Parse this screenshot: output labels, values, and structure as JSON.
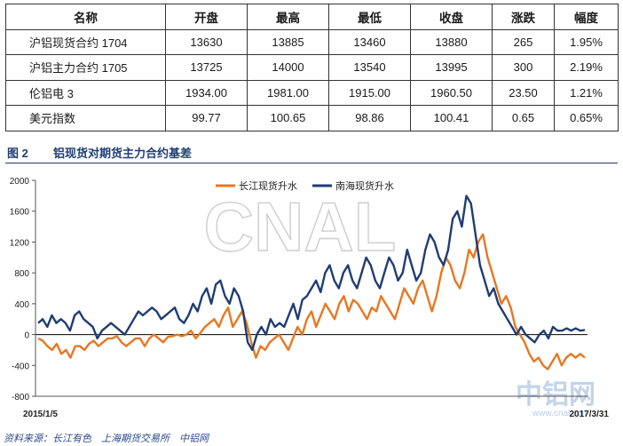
{
  "table": {
    "headers": [
      "名称",
      "开盘",
      "最高",
      "最低",
      "收盘",
      "涨跌",
      "幅度"
    ],
    "rows": [
      [
        "沪铝现货合约 1704",
        "13630",
        "13885",
        "13460",
        "13880",
        "265",
        "1.95%"
      ],
      [
        "沪铝主力合约 1705",
        "13725",
        "14000",
        "13540",
        "13995",
        "300",
        "2.19%"
      ],
      [
        "伦铝电 3",
        "1934.00",
        "1981.00",
        "1915.00",
        "1960.50",
        "23.50",
        "1.21%"
      ],
      [
        "美元指数",
        "99.77",
        "100.65",
        "98.86",
        "100.41",
        "0.65",
        "0.65%"
      ]
    ]
  },
  "figure": {
    "number": "图 2",
    "title": "铝现货对期货主力合约基差"
  },
  "source": "资料来源：长江有色　上海期货交易所　中铝网",
  "watermark": {
    "main": "CNAL",
    "logo": "中铝网",
    "url": "www.cnal.com"
  },
  "chart_data": {
    "type": "line",
    "x_range": [
      "2015/1/5",
      "2017/3/31"
    ],
    "xtick_labels": [
      "2015/1/5",
      "2017/3/31"
    ],
    "ylim": [
      -800,
      2000
    ],
    "yticks": [
      -800,
      -400,
      0,
      400,
      800,
      1200,
      1600,
      2000
    ],
    "legend_position": "top-center",
    "colors": {
      "orange": "#e87722",
      "navy": "#1f3d73"
    },
    "series": [
      {
        "name": "长江现货升水",
        "color": "#e87722",
        "values": [
          -50,
          -80,
          -150,
          -200,
          -120,
          -250,
          -200,
          -300,
          -150,
          -150,
          -200,
          -120,
          -80,
          -150,
          -100,
          -50,
          -50,
          -20,
          -100,
          -150,
          -100,
          -50,
          -50,
          -150,
          -50,
          0,
          -50,
          -100,
          -30,
          -20,
          0,
          -20,
          0,
          50,
          -50,
          20,
          100,
          150,
          200,
          100,
          250,
          350,
          100,
          200,
          300,
          150,
          -100,
          -300,
          -150,
          -200,
          -100,
          -50,
          0,
          -100,
          -200,
          -50,
          100,
          0,
          200,
          300,
          100,
          250,
          400,
          300,
          200,
          400,
          500,
          300,
          450,
          400,
          300,
          200,
          350,
          300,
          500,
          400,
          300,
          200,
          400,
          600,
          500,
          400,
          600,
          700,
          500,
          300,
          500,
          800,
          1000,
          900,
          700,
          600,
          800,
          1100,
          1000,
          1200,
          1300,
          1000,
          800,
          600,
          400,
          500,
          350,
          100,
          0,
          -100,
          -250,
          -350,
          -300,
          -400,
          -450,
          -350,
          -250,
          -400,
          -300,
          -250,
          -300,
          -250,
          -300
        ]
      },
      {
        "name": "南海现货升水",
        "color": "#1f3d73",
        "values": [
          150,
          200,
          100,
          250,
          150,
          200,
          150,
          50,
          250,
          300,
          200,
          150,
          100,
          -50,
          50,
          100,
          150,
          100,
          50,
          0,
          100,
          200,
          300,
          250,
          300,
          350,
          300,
          200,
          250,
          300,
          350,
          200,
          150,
          250,
          400,
          300,
          500,
          600,
          400,
          650,
          700,
          500,
          400,
          600,
          500,
          300,
          -100,
          -200,
          0,
          100,
          0,
          200,
          100,
          150,
          100,
          250,
          400,
          200,
          450,
          500,
          600,
          700,
          550,
          800,
          900,
          700,
          600,
          800,
          900,
          700,
          600,
          800,
          1000,
          900,
          700,
          600,
          800,
          1000,
          900,
          700,
          800,
          1100,
          900,
          700,
          800,
          1100,
          1300,
          1200,
          1000,
          900,
          1100,
          1500,
          1600,
          1400,
          1800,
          1700,
          1300,
          900,
          700,
          500,
          600,
          400,
          300,
          200,
          100,
          0,
          100,
          0,
          -50,
          -100,
          0,
          50,
          -50,
          100,
          50,
          50,
          80,
          50,
          80,
          50,
          60
        ]
      }
    ]
  }
}
